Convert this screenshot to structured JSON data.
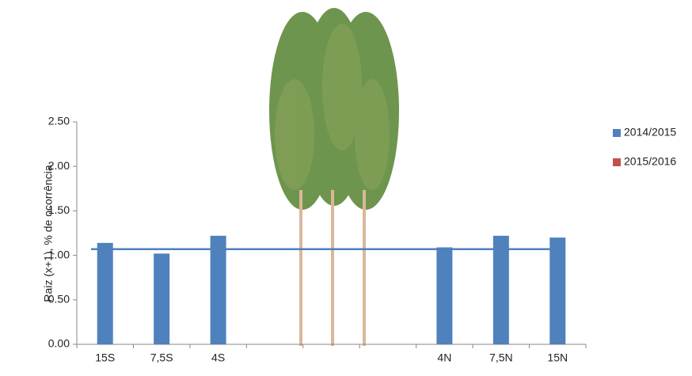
{
  "chart_data": {
    "type": "bar",
    "y_label": "Raiz (x+1), % de ocorrência",
    "categories": [
      "15S",
      "7,5S",
      "4S",
      null,
      null,
      null,
      "4N",
      "7,5N",
      "15N"
    ],
    "series": [
      {
        "name": "2014/2015",
        "color": "#4f81bd",
        "values": [
          1.14,
          1.02,
          1.22,
          null,
          null,
          null,
          1.09,
          1.22,
          1.2
        ]
      },
      {
        "name": "2015/2016",
        "color": "#c0504d",
        "values": [
          null,
          null,
          null,
          null,
          null,
          null,
          null,
          null,
          null
        ]
      }
    ],
    "reference_line": {
      "value": 1.07,
      "color": "#4f81bd"
    },
    "ylim": [
      0,
      2.5
    ],
    "yticks": [
      {
        "value": 0,
        "label": "0.00"
      },
      {
        "value": 0.5,
        "label": "0.50"
      },
      {
        "value": 1,
        "label": "1.00"
      },
      {
        "value": 1.5,
        "label": "1.50"
      },
      {
        "value": 2,
        "label": "2.00"
      },
      {
        "value": 2.5,
        "label": "2.50"
      }
    ],
    "legend": "right"
  }
}
